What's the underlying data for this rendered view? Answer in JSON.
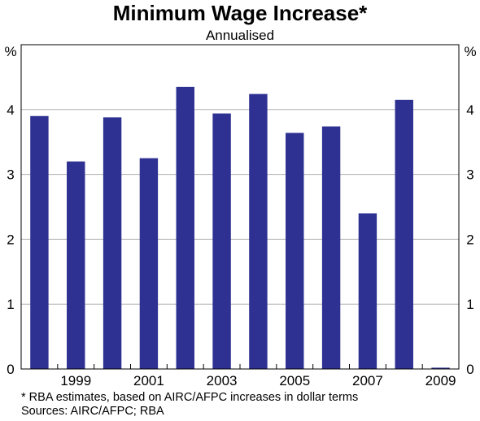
{
  "title": "Minimum Wage Increase*",
  "subtitle": "Annualised",
  "footnote": "*   RBA estimates, based on AIRC/AFPC increases in dollar terms",
  "source": "Sources: AIRC/AFPC; RBA",
  "colors": {
    "bar": "#2e3192",
    "grid": "#b0b0b0",
    "frame": "#000000"
  },
  "chart_data": {
    "type": "bar",
    "title": "Minimum Wage Increase*",
    "subtitle": "Annualised",
    "xlabel": "",
    "ylabel": "%",
    "ylabel_right": "%",
    "ylim": [
      0,
      5
    ],
    "yticks": [
      0,
      1,
      2,
      3,
      4
    ],
    "grid": true,
    "legend": "none",
    "categories": [
      "1998",
      "1999",
      "2000",
      "2001",
      "2002",
      "2003",
      "2004",
      "2005",
      "2006",
      "2007",
      "2008",
      "2009"
    ],
    "x_tick_labels": [
      "1999",
      "2001",
      "2003",
      "2005",
      "2007",
      "2009"
    ],
    "values": [
      3.9,
      3.2,
      3.88,
      3.25,
      4.35,
      3.94,
      4.24,
      3.64,
      3.74,
      2.4,
      4.15,
      0.02
    ]
  }
}
